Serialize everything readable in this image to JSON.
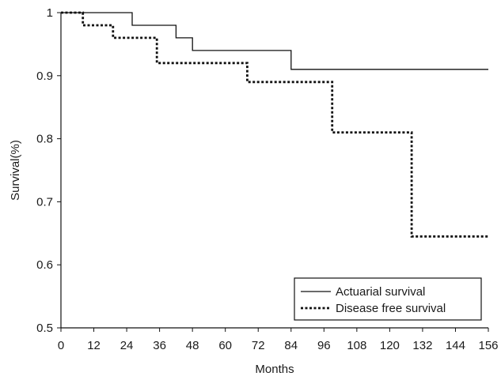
{
  "chart_data": {
    "type": "line",
    "step": true,
    "xlabel": "Months",
    "ylabel": "Survival(%)",
    "xlim": [
      0,
      156
    ],
    "ylim": [
      0.5,
      1
    ],
    "xticks": [
      0,
      12,
      24,
      36,
      48,
      60,
      72,
      84,
      96,
      108,
      120,
      132,
      144,
      156
    ],
    "yticks": [
      0.5,
      0.6,
      0.7,
      0.8,
      0.9,
      1
    ],
    "ytick_labels": [
      "0.5",
      "0.6",
      "0.7",
      "0.8",
      "0.9",
      "1"
    ],
    "grid": false,
    "legend_position": "bottom-right",
    "series": [
      {
        "name": "Actuarial survival",
        "line_style": "solid",
        "color": "#111111",
        "x": [
          0,
          26,
          26,
          42,
          42,
          48,
          48,
          84,
          84,
          156
        ],
        "y": [
          1,
          1,
          0.98,
          0.98,
          0.96,
          0.96,
          0.94,
          0.94,
          0.91,
          0.91
        ]
      },
      {
        "name": "Disease free survival",
        "line_style": "dotted",
        "color": "#111111",
        "x": [
          0,
          8,
          8,
          19,
          19,
          35,
          35,
          68,
          68,
          99,
          99,
          128,
          128,
          156
        ],
        "y": [
          1,
          1,
          0.98,
          0.98,
          0.96,
          0.96,
          0.92,
          0.92,
          0.89,
          0.89,
          0.81,
          0.81,
          0.645,
          0.645
        ]
      }
    ]
  }
}
